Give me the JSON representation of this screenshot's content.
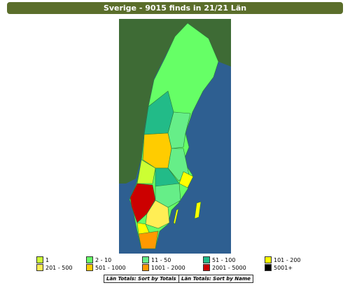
{
  "title": "Sverige - 9015 finds in 21/21 Län",
  "legend": [
    {
      "label": "1",
      "color": "#ccff33"
    },
    {
      "label": "2 - 10",
      "color": "#66ff66"
    },
    {
      "label": "11 - 50",
      "color": "#66ee88"
    },
    {
      "label": "51 - 100",
      "color": "#22bb88"
    },
    {
      "label": "101 - 200",
      "color": "#ffff00"
    },
    {
      "label": "201 - 500",
      "color": "#ffee55"
    },
    {
      "label": "501 - 1000",
      "color": "#ffcc00"
    },
    {
      "label": "1001 - 2000",
      "color": "#ff9900"
    },
    {
      "label": "2001 - 5000",
      "color": "#cc0000"
    },
    {
      "label": "5001+",
      "color": "#000000"
    }
  ],
  "buttons": [
    "Län Totals: Sort by Totals",
    "Län Totals: Sort by Name"
  ]
}
